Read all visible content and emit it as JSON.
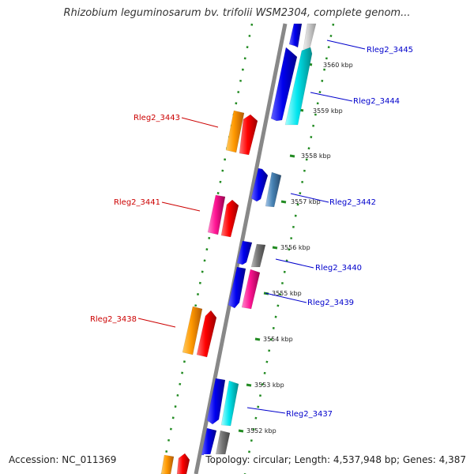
{
  "title": "Rhizobium leguminosarum bv. trifolii WSM2304, complete genom...",
  "footer": {
    "accession": "Accession: NC_011369",
    "summary": "Topology: circular; Length: 4,537,948 bp; Genes: 4,387"
  },
  "ticks": [
    "3552 kbp",
    "3553 kbp",
    "3554 kbp",
    "3555 kbp",
    "3556 kbp",
    "3557 kbp",
    "3558 kbp",
    "3559 kbp",
    "3560 kbp"
  ],
  "genes": [
    {
      "label": "Rleg2_3445",
      "strand": "forward",
      "color": "#0000cc"
    },
    {
      "label": "Rleg2_3444",
      "strand": "forward",
      "color": "#0000cc"
    },
    {
      "label": "Rleg2_3443",
      "strand": "reverse",
      "color": "#cc0000"
    },
    {
      "label": "Rleg2_3442",
      "strand": "forward",
      "color": "#0000cc"
    },
    {
      "label": "Rleg2_3441",
      "strand": "reverse",
      "color": "#cc0000"
    },
    {
      "label": "Rleg2_3440",
      "strand": "forward",
      "color": "#0000cc"
    },
    {
      "label": "Rleg2_3439",
      "strand": "forward",
      "color": "#0000cc"
    },
    {
      "label": "Rleg2_3438",
      "strand": "reverse",
      "color": "#cc0000"
    },
    {
      "label": "Rleg2_3437",
      "strand": "forward",
      "color": "#0000cc"
    }
  ],
  "colors": {
    "backbone": "#888888",
    "forward_orf": "#1a1aff",
    "reverse_orf": "#ff8c00",
    "cog_red": "#ff0000",
    "cog_cyan": "#00e5ee",
    "cog_pink": "#ff1493",
    "cog_steel": "#4682b4",
    "cog_gray": "#777777",
    "dotted_track": "#228b22"
  }
}
